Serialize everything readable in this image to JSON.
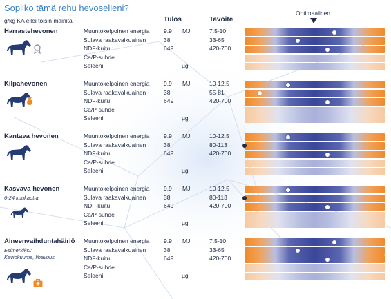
{
  "title": "Sopiiko tämä rehu hevoselleni?",
  "unit_note": "g/kg KA ellei toisin mainita",
  "headers": {
    "result": "Tulos",
    "target": "Tavoite",
    "optimal": "Optimaalinen"
  },
  "colors": {
    "low_high": "#ef8a2a",
    "optimal": "#3a4698",
    "text": "#1f2a44",
    "title": "#3b83c4"
  },
  "chart_data": {
    "type": "table",
    "groups": [
      {
        "name": "Harrastehevonen",
        "subtitle": "",
        "icon": "horse-with-rosette-icon",
        "rows": [
          {
            "nutrient": "Muuntokelpoinen energia",
            "value": "9.9",
            "unit": "MJ",
            "target": "7.5-10",
            "marker": 0.64,
            "marker_color": "white",
            "bar": "strong"
          },
          {
            "nutrient": "Sulava raakavalkuainen",
            "value": "38",
            "unit": "",
            "target": "33-65",
            "marker": 0.38,
            "marker_color": "white",
            "bar": "strong"
          },
          {
            "nutrient": "NDF-kuitu",
            "value": "649",
            "unit": "",
            "target": "420-700",
            "marker": 0.59,
            "marker_color": "white",
            "bar": "strong"
          },
          {
            "nutrient": "Ca/P-suhde",
            "value": "",
            "unit": "",
            "target": "",
            "marker": null,
            "marker_color": "",
            "bar": "faint"
          },
          {
            "nutrient": "Seleeni",
            "value": "",
            "unit": "µg",
            "target": "",
            "marker": null,
            "marker_color": "",
            "bar": "faint"
          }
        ]
      },
      {
        "name": "Kilpahevonen",
        "subtitle": "",
        "icon": "horse-with-medal-icon",
        "rows": [
          {
            "nutrient": "Muuntokelpoinen energia",
            "value": "9.9",
            "unit": "MJ",
            "target": "10-12.5",
            "marker": 0.31,
            "marker_color": "white",
            "bar": "strong"
          },
          {
            "nutrient": "Sulava raakavalkuainen",
            "value": "38",
            "unit": "",
            "target": "55-81",
            "marker": 0.11,
            "marker_color": "white",
            "bar": "strong"
          },
          {
            "nutrient": "NDF-kuitu",
            "value": "649",
            "unit": "",
            "target": "420-700",
            "marker": 0.59,
            "marker_color": "white",
            "bar": "strong"
          },
          {
            "nutrient": "Ca/P-suhde",
            "value": "",
            "unit": "",
            "target": "",
            "marker": null,
            "marker_color": "",
            "bar": "faint"
          },
          {
            "nutrient": "Seleeni",
            "value": "",
            "unit": "µg",
            "target": "",
            "marker": null,
            "marker_color": "",
            "bar": "faint"
          }
        ]
      },
      {
        "name": "Kantava hevonen",
        "subtitle": "",
        "icon": "pregnant-horse-icon",
        "rows": [
          {
            "nutrient": "Muuntokelpoinen energia",
            "value": "9.9",
            "unit": "MJ",
            "target": "10-12.5",
            "marker": 0.31,
            "marker_color": "white",
            "bar": "strong"
          },
          {
            "nutrient": "Sulava raakavalkuainen",
            "value": "38",
            "unit": "",
            "target": "80-113",
            "marker": 0.0,
            "marker_color": "dark",
            "bar": "strong"
          },
          {
            "nutrient": "NDF-kuitu",
            "value": "649",
            "unit": "",
            "target": "420-700",
            "marker": 0.59,
            "marker_color": "white",
            "bar": "strong"
          },
          {
            "nutrient": "Ca/P-suhde",
            "value": "",
            "unit": "",
            "target": "",
            "marker": null,
            "marker_color": "",
            "bar": "faint"
          },
          {
            "nutrient": "Seleeni",
            "value": "",
            "unit": "µg",
            "target": "",
            "marker": null,
            "marker_color": "",
            "bar": "faint"
          }
        ]
      },
      {
        "name": "Kasvava hevonen",
        "subtitle": "6-24 kuukautta",
        "icon": "young-horse-icon",
        "rows": [
          {
            "nutrient": "Muuntokelpoinen energia",
            "value": "9.9",
            "unit": "MJ",
            "target": "10-12.5",
            "marker": 0.31,
            "marker_color": "white",
            "bar": "strong"
          },
          {
            "nutrient": "Sulava raakavalkuainen",
            "value": "38",
            "unit": "",
            "target": "80-113",
            "marker": 0.0,
            "marker_color": "dark",
            "bar": "strong"
          },
          {
            "nutrient": "NDF-kuitu",
            "value": "649",
            "unit": "",
            "target": "420-700",
            "marker": 0.59,
            "marker_color": "white",
            "bar": "strong"
          },
          {
            "nutrient": "Ca/P-suhde",
            "value": "",
            "unit": "",
            "target": "",
            "marker": null,
            "marker_color": "",
            "bar": "faint"
          },
          {
            "nutrient": "Seleeni",
            "value": "",
            "unit": "µg",
            "target": "",
            "marker": null,
            "marker_color": "",
            "bar": "faint"
          }
        ]
      },
      {
        "name": "Aineenvaihduntahäiriö",
        "subtitle": "Esimerkiksi: Kaviokuume, lihavuus",
        "icon": "horse-with-medkit-icon",
        "rows": [
          {
            "nutrient": "Muuntokelpoinen energia",
            "value": "9.9",
            "unit": "MJ",
            "target": "7.5-10",
            "marker": 0.64,
            "marker_color": "white",
            "bar": "strong"
          },
          {
            "nutrient": "Sulava raakavalkuainen",
            "value": "38",
            "unit": "",
            "target": "33-65",
            "marker": 0.38,
            "marker_color": "white",
            "bar": "strong"
          },
          {
            "nutrient": "NDF-kuitu",
            "value": "649",
            "unit": "",
            "target": "420-700",
            "marker": 0.59,
            "marker_color": "white",
            "bar": "strong"
          },
          {
            "nutrient": "Ca/P-suhde",
            "value": "",
            "unit": "",
            "target": "",
            "marker": null,
            "marker_color": "",
            "bar": "faint"
          },
          {
            "nutrient": "Seleeni",
            "value": "",
            "unit": "µg",
            "target": "",
            "marker": null,
            "marker_color": "",
            "bar": "faint"
          }
        ]
      }
    ]
  }
}
